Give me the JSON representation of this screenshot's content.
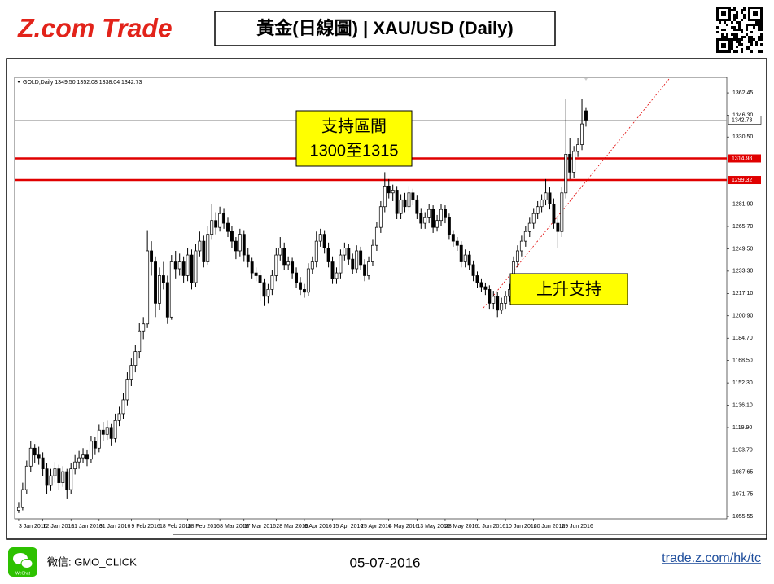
{
  "header": {
    "logo": "Z.com Trade",
    "title": "黃金(日線圖) | XAU/USD (Daily)"
  },
  "chart_data": {
    "type": "candlestick",
    "info": "GOLD,Daily  1349.50 1352.08 1338.04 1342.73",
    "candles": [
      [
        1060,
        1066,
        1058,
        1062
      ],
      [
        1062,
        1080,
        1060,
        1075
      ],
      [
        1075,
        1096,
        1072,
        1092
      ],
      [
        1092,
        1110,
        1088,
        1105
      ],
      [
        1105,
        1108,
        1094,
        1100
      ],
      [
        1100,
        1106,
        1093,
        1098
      ],
      [
        1098,
        1102,
        1085,
        1090
      ],
      [
        1090,
        1094,
        1072,
        1078
      ],
      [
        1078,
        1090,
        1074,
        1085
      ],
      [
        1085,
        1095,
        1080,
        1090
      ],
      [
        1090,
        1093,
        1075,
        1080
      ],
      [
        1080,
        1092,
        1077,
        1088
      ],
      [
        1088,
        1090,
        1068,
        1075
      ],
      [
        1075,
        1094,
        1072,
        1090
      ],
      [
        1090,
        1100,
        1086,
        1095
      ],
      [
        1095,
        1103,
        1090,
        1098
      ],
      [
        1098,
        1105,
        1094,
        1100
      ],
      [
        1100,
        1104,
        1092,
        1097
      ],
      [
        1097,
        1114,
        1094,
        1110
      ],
      [
        1110,
        1113,
        1100,
        1105
      ],
      [
        1105,
        1122,
        1102,
        1118
      ],
      [
        1118,
        1124,
        1110,
        1115
      ],
      [
        1115,
        1125,
        1111,
        1120
      ],
      [
        1120,
        1123,
        1107,
        1112
      ],
      [
        1112,
        1130,
        1109,
        1125
      ],
      [
        1125,
        1135,
        1121,
        1130
      ],
      [
        1130,
        1145,
        1126,
        1140
      ],
      [
        1140,
        1160,
        1136,
        1155
      ],
      [
        1155,
        1170,
        1150,
        1165
      ],
      [
        1165,
        1180,
        1160,
        1175
      ],
      [
        1175,
        1196,
        1170,
        1190
      ],
      [
        1190,
        1200,
        1184,
        1195
      ],
      [
        1195,
        1263,
        1192,
        1248
      ],
      [
        1248,
        1255,
        1230,
        1240
      ],
      [
        1240,
        1244,
        1200,
        1210
      ],
      [
        1210,
        1236,
        1205,
        1230
      ],
      [
        1230,
        1240,
        1220,
        1225
      ],
      [
        1225,
        1230,
        1195,
        1200
      ],
      [
        1200,
        1245,
        1198,
        1240
      ],
      [
        1240,
        1248,
        1228,
        1235
      ],
      [
        1235,
        1246,
        1230,
        1240
      ],
      [
        1240,
        1244,
        1225,
        1230
      ],
      [
        1230,
        1250,
        1226,
        1245
      ],
      [
        1245,
        1249,
        1220,
        1225
      ],
      [
        1225,
        1253,
        1222,
        1248
      ],
      [
        1248,
        1262,
        1244,
        1255
      ],
      [
        1255,
        1259,
        1236,
        1240
      ],
      [
        1240,
        1266,
        1238,
        1260
      ],
      [
        1260,
        1282,
        1256,
        1270
      ],
      [
        1270,
        1276,
        1260,
        1265
      ],
      [
        1265,
        1280,
        1262,
        1275
      ],
      [
        1275,
        1279,
        1264,
        1268
      ],
      [
        1268,
        1272,
        1258,
        1262
      ],
      [
        1262,
        1266,
        1250,
        1255
      ],
      [
        1255,
        1258,
        1242,
        1248
      ],
      [
        1248,
        1264,
        1244,
        1260
      ],
      [
        1260,
        1263,
        1240,
        1245
      ],
      [
        1245,
        1250,
        1236,
        1240
      ],
      [
        1240,
        1243,
        1228,
        1232
      ],
      [
        1232,
        1236,
        1226,
        1230
      ],
      [
        1230,
        1234,
        1212,
        1225
      ],
      [
        1225,
        1228,
        1208,
        1215
      ],
      [
        1215,
        1224,
        1210,
        1220
      ],
      [
        1220,
        1234,
        1216,
        1230
      ],
      [
        1230,
        1250,
        1226,
        1245
      ],
      [
        1245,
        1258,
        1241,
        1250
      ],
      [
        1250,
        1254,
        1234,
        1238
      ],
      [
        1238,
        1244,
        1234,
        1240
      ],
      [
        1240,
        1243,
        1228,
        1232
      ],
      [
        1232,
        1236,
        1221,
        1225
      ],
      [
        1225,
        1229,
        1216,
        1220
      ],
      [
        1220,
        1224,
        1214,
        1218
      ],
      [
        1218,
        1239,
        1215,
        1235
      ],
      [
        1235,
        1244,
        1231,
        1240
      ],
      [
        1240,
        1262,
        1236,
        1255
      ],
      [
        1255,
        1264,
        1251,
        1260
      ],
      [
        1260,
        1263,
        1246,
        1250
      ],
      [
        1250,
        1254,
        1236,
        1240
      ],
      [
        1240,
        1244,
        1224,
        1228
      ],
      [
        1228,
        1236,
        1224,
        1232
      ],
      [
        1232,
        1249,
        1228,
        1245
      ],
      [
        1245,
        1254,
        1241,
        1250
      ],
      [
        1250,
        1253,
        1238,
        1242
      ],
      [
        1242,
        1246,
        1231,
        1235
      ],
      [
        1235,
        1252,
        1232,
        1248
      ],
      [
        1248,
        1251,
        1234,
        1238
      ],
      [
        1238,
        1242,
        1226,
        1230
      ],
      [
        1230,
        1244,
        1227,
        1240
      ],
      [
        1240,
        1256,
        1237,
        1252
      ],
      [
        1252,
        1269,
        1248,
        1265
      ],
      [
        1265,
        1284,
        1261,
        1280
      ],
      [
        1280,
        1305,
        1276,
        1295
      ],
      [
        1295,
        1300,
        1286,
        1290
      ],
      [
        1290,
        1296,
        1284,
        1292
      ],
      [
        1292,
        1295,
        1271,
        1275
      ],
      [
        1275,
        1289,
        1271,
        1285
      ],
      [
        1285,
        1290,
        1276,
        1280
      ],
      [
        1280,
        1295,
        1277,
        1290
      ],
      [
        1290,
        1293,
        1281,
        1285
      ],
      [
        1285,
        1288,
        1271,
        1275
      ],
      [
        1275,
        1279,
        1264,
        1268
      ],
      [
        1268,
        1276,
        1264,
        1272
      ],
      [
        1272,
        1282,
        1268,
        1278
      ],
      [
        1278,
        1281,
        1261,
        1265
      ],
      [
        1265,
        1274,
        1262,
        1270
      ],
      [
        1270,
        1282,
        1266,
        1278
      ],
      [
        1278,
        1281,
        1268,
        1272
      ],
      [
        1272,
        1275,
        1256,
        1260
      ],
      [
        1260,
        1263,
        1251,
        1255
      ],
      [
        1255,
        1258,
        1248,
        1252
      ],
      [
        1252,
        1255,
        1236,
        1240
      ],
      [
        1240,
        1249,
        1236,
        1245
      ],
      [
        1245,
        1248,
        1234,
        1238
      ],
      [
        1238,
        1241,
        1226,
        1230
      ],
      [
        1230,
        1233,
        1221,
        1225
      ],
      [
        1225,
        1228,
        1218,
        1222
      ],
      [
        1222,
        1225,
        1216,
        1220
      ],
      [
        1220,
        1223,
        1206,
        1210
      ],
      [
        1210,
        1219,
        1206,
        1215
      ],
      [
        1215,
        1218,
        1200,
        1205
      ],
      [
        1205,
        1214,
        1202,
        1210
      ],
      [
        1210,
        1219,
        1206,
        1215
      ],
      [
        1215,
        1224,
        1211,
        1220
      ],
      [
        1220,
        1244,
        1216,
        1240
      ],
      [
        1240,
        1252,
        1236,
        1248
      ],
      [
        1248,
        1259,
        1244,
        1255
      ],
      [
        1255,
        1266,
        1251,
        1262
      ],
      [
        1262,
        1272,
        1258,
        1268
      ],
      [
        1268,
        1279,
        1264,
        1275
      ],
      [
        1275,
        1284,
        1271,
        1280
      ],
      [
        1280,
        1289,
        1276,
        1285
      ],
      [
        1285,
        1300,
        1281,
        1290
      ],
      [
        1290,
        1294,
        1278,
        1282
      ],
      [
        1282,
        1286,
        1264,
        1268
      ],
      [
        1268,
        1272,
        1250,
        1262
      ],
      [
        1262,
        1294,
        1258,
        1290
      ],
      [
        1290,
        1358,
        1286,
        1318
      ],
      [
        1318,
        1330,
        1300,
        1305
      ],
      [
        1305,
        1324,
        1301,
        1320
      ],
      [
        1320,
        1330,
        1316,
        1325
      ],
      [
        1325,
        1358,
        1321,
        1340
      ],
      [
        1349.5,
        1352.08,
        1338.04,
        1342.73
      ]
    ],
    "up_color": "#ffffff",
    "down_color": "#000000",
    "xlim": [
      -1,
      176
    ],
    "xticks": [
      {
        "value": 0,
        "label": "3 Jan 2016"
      },
      {
        "value": 6,
        "label": "12 Jan 2016"
      },
      {
        "value": 13,
        "label": "21 Jan 2016"
      },
      {
        "value": 20,
        "label": "31 Jan 2016"
      },
      {
        "value": 28,
        "label": "9 Feb 2016"
      },
      {
        "value": 35,
        "label": "18 Feb 2016"
      },
      {
        "value": 42,
        "label": "28 Feb 2016"
      },
      {
        "value": 50,
        "label": "8 Mar 2016"
      },
      {
        "value": 56,
        "label": "17 Mar 2016"
      },
      {
        "value": 64,
        "label": "28 Mar 2016"
      },
      {
        "value": 71,
        "label": "6 Apr 2016"
      },
      {
        "value": 78,
        "label": "15 Apr 2016"
      },
      {
        "value": 85,
        "label": "25 Apr 2016"
      },
      {
        "value": 92,
        "label": "4 May 2016"
      },
      {
        "value": 99,
        "label": "13 May 2016"
      },
      {
        "value": 106,
        "label": "23 May 2016"
      },
      {
        "value": 114,
        "label": "1 Jun 2016"
      },
      {
        "value": 121,
        "label": "10 Jun 2016"
      },
      {
        "value": 128,
        "label": "20 Jun 2016"
      },
      {
        "value": 135,
        "label": "29 Jun 2016"
      }
    ],
    "ylim": [
      1053.8,
      1373.7
    ],
    "yticks": [
      1362.45,
      {
        "value": 1346.3,
        "label": "1346.30"
      },
      {
        "value": 1330.5,
        "label": "1330.50"
      },
      {
        "value": 1281.9,
        "label": "1281.90"
      },
      {
        "value": 1265.7,
        "label": "1265.70"
      },
      {
        "value": 1249.5,
        "label": "1249.50"
      },
      {
        "value": 1233.3,
        "label": "1233.30"
      },
      {
        "value": 1217.1,
        "label": "1217.10"
      },
      {
        "value": 1200.9,
        "label": "1200.90"
      },
      {
        "value": 1184.7,
        "label": "1184.70"
      },
      {
        "value": 1168.5,
        "label": "1168.50"
      },
      {
        "value": 1152.3,
        "label": "1152.30"
      },
      {
        "value": 1136.1,
        "label": "1136.10"
      },
      {
        "value": 1119.9,
        "label": "1119.90"
      },
      {
        "value": 1103.7,
        "label": "1103.70"
      },
      1087.65,
      1071.75,
      1055.55
    ],
    "levels": [
      {
        "value": 1314.98,
        "color": "#e00000"
      },
      {
        "value": 1299.32,
        "color": "#e00000"
      }
    ],
    "annotations": [
      {
        "lines": [
          "支持區間",
          "1300至1315"
        ]
      },
      {
        "lines": [
          "上升支持"
        ]
      }
    ]
  },
  "footer": {
    "icon": "WeChat",
    "wechat": "微信: GMO_CLICK",
    "date": "05-07-2016",
    "link": "trade.z.com/hk/tc"
  }
}
